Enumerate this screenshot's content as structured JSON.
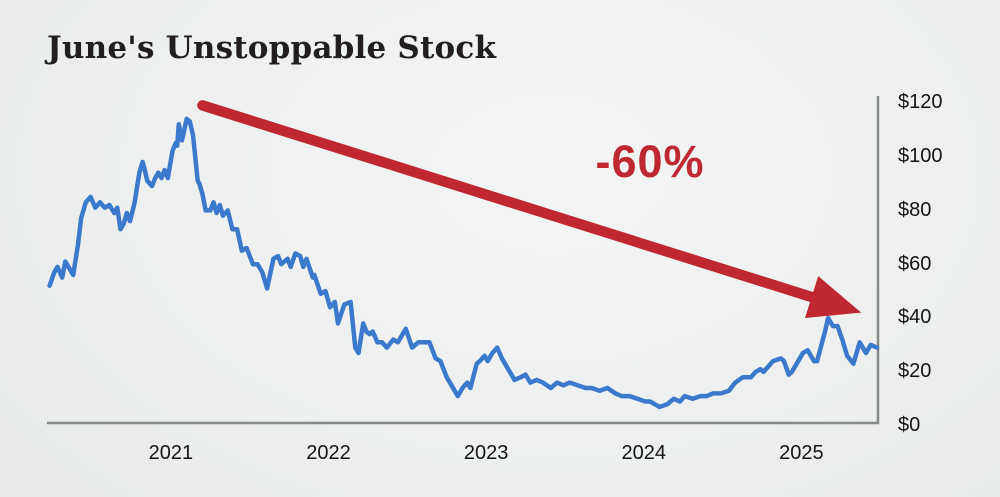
{
  "page": {
    "title": "June's Unstoppable Stock"
  },
  "colors": {
    "line_blue": "#3b79cd",
    "accent_red": "#bf2830",
    "axis_gray": "#858988",
    "tick_text": "#151515",
    "title_text": "#221e1f",
    "background": "#eceeed"
  },
  "chart_data": {
    "type": "line",
    "title": "June's Unstoppable Stock",
    "xlabel": "",
    "ylabel": "",
    "grid": false,
    "legend": false,
    "x_axis": {
      "range": [
        2020.22,
        2025.48
      ],
      "ticks": [
        2021,
        2022,
        2023,
        2024,
        2025
      ],
      "tick_labels": [
        "2021",
        "2022",
        "2023",
        "2024",
        "2025"
      ]
    },
    "y_axis": {
      "range": [
        0,
        120
      ],
      "ticks": [
        0,
        20,
        40,
        60,
        80,
        100,
        120
      ],
      "tick_labels": [
        "$0",
        "$20",
        "$40",
        "$60",
        "$80",
        "$100",
        "$120"
      ],
      "side": "right",
      "unit": "USD"
    },
    "series": [
      {
        "name": "stock-price",
        "color": "#3b79cd",
        "points": [
          [
            2020.23,
            51
          ],
          [
            2020.26,
            56
          ],
          [
            2020.28,
            58
          ],
          [
            2020.31,
            54
          ],
          [
            2020.33,
            60
          ],
          [
            2020.36,
            57
          ],
          [
            2020.38,
            55
          ],
          [
            2020.41,
            66
          ],
          [
            2020.43,
            76
          ],
          [
            2020.46,
            82
          ],
          [
            2020.49,
            84
          ],
          [
            2020.52,
            80
          ],
          [
            2020.55,
            82
          ],
          [
            2020.58,
            80
          ],
          [
            2020.61,
            81
          ],
          [
            2020.64,
            78
          ],
          [
            2020.66,
            80
          ],
          [
            2020.68,
            72
          ],
          [
            2020.7,
            74
          ],
          [
            2020.72,
            78
          ],
          [
            2020.74,
            75
          ],
          [
            2020.77,
            82
          ],
          [
            2020.78,
            86
          ],
          [
            2020.8,
            93
          ],
          [
            2020.82,
            97
          ],
          [
            2020.83,
            95
          ],
          [
            2020.85,
            90
          ],
          [
            2020.88,
            88
          ],
          [
            2020.9,
            91
          ],
          [
            2020.92,
            93
          ],
          [
            2020.94,
            91
          ],
          [
            2020.96,
            94
          ],
          [
            2020.98,
            91
          ],
          [
            2021.01,
            101
          ],
          [
            2021.03,
            104
          ],
          [
            2021.04,
            103
          ],
          [
            2021.05,
            111
          ],
          [
            2021.07,
            105
          ],
          [
            2021.1,
            113
          ],
          [
            2021.12,
            112
          ],
          [
            2021.14,
            107
          ],
          [
            2021.17,
            90
          ],
          [
            2021.18,
            89
          ],
          [
            2021.2,
            85
          ],
          [
            2021.22,
            79
          ],
          [
            2021.25,
            79
          ],
          [
            2021.27,
            82
          ],
          [
            2021.29,
            78
          ],
          [
            2021.31,
            81
          ],
          [
            2021.33,
            77
          ],
          [
            2021.36,
            79
          ],
          [
            2021.39,
            72
          ],
          [
            2021.42,
            72
          ],
          [
            2021.45,
            64
          ],
          [
            2021.48,
            65
          ],
          [
            2021.52,
            59
          ],
          [
            2021.55,
            59
          ],
          [
            2021.58,
            56
          ],
          [
            2021.61,
            50
          ],
          [
            2021.65,
            61
          ],
          [
            2021.68,
            62
          ],
          [
            2021.7,
            59
          ],
          [
            2021.74,
            61
          ],
          [
            2021.76,
            58
          ],
          [
            2021.79,
            63
          ],
          [
            2021.82,
            62
          ],
          [
            2021.84,
            58
          ],
          [
            2021.86,
            61
          ],
          [
            2021.9,
            54
          ],
          [
            2021.91,
            55
          ],
          [
            2021.95,
            48
          ],
          [
            2021.98,
            49
          ],
          [
            2022.01,
            43
          ],
          [
            2022.04,
            45
          ],
          [
            2022.06,
            37
          ],
          [
            2022.1,
            44
          ],
          [
            2022.14,
            45
          ],
          [
            2022.17,
            28
          ],
          [
            2022.19,
            26
          ],
          [
            2022.22,
            37
          ],
          [
            2022.24,
            34
          ],
          [
            2022.26,
            33
          ],
          [
            2022.28,
            34
          ],
          [
            2022.31,
            30
          ],
          [
            2022.34,
            30
          ],
          [
            2022.37,
            28
          ],
          [
            2022.41,
            31
          ],
          [
            2022.44,
            30
          ],
          [
            2022.47,
            33
          ],
          [
            2022.49,
            35
          ],
          [
            2022.53,
            28
          ],
          [
            2022.57,
            30
          ],
          [
            2022.61,
            30
          ],
          [
            2022.64,
            30
          ],
          [
            2022.68,
            24
          ],
          [
            2022.71,
            23
          ],
          [
            2022.75,
            17
          ],
          [
            2022.78,
            14
          ],
          [
            2022.82,
            10
          ],
          [
            2022.85,
            13
          ],
          [
            2022.88,
            15
          ],
          [
            2022.9,
            13
          ],
          [
            2022.94,
            22
          ],
          [
            2022.96,
            23
          ],
          [
            2022.99,
            25
          ],
          [
            2023.01,
            23
          ],
          [
            2023.04,
            26
          ],
          [
            2023.07,
            28
          ],
          [
            2023.1,
            24
          ],
          [
            2023.12,
            22
          ],
          [
            2023.15,
            19
          ],
          [
            2023.18,
            16
          ],
          [
            2023.22,
            17
          ],
          [
            2023.25,
            18
          ],
          [
            2023.28,
            15
          ],
          [
            2023.32,
            16
          ],
          [
            2023.36,
            15
          ],
          [
            2023.41,
            13
          ],
          [
            2023.45,
            15
          ],
          [
            2023.49,
            14
          ],
          [
            2023.53,
            15
          ],
          [
            2023.58,
            14
          ],
          [
            2023.63,
            13
          ],
          [
            2023.67,
            13
          ],
          [
            2023.72,
            12
          ],
          [
            2023.77,
            13
          ],
          [
            2023.82,
            11
          ],
          [
            2023.86,
            10
          ],
          [
            2023.91,
            10
          ],
          [
            2023.96,
            9
          ],
          [
            2024.01,
            8
          ],
          [
            2024.04,
            8
          ],
          [
            2024.07,
            7
          ],
          [
            2024.1,
            6
          ],
          [
            2024.15,
            7
          ],
          [
            2024.19,
            9
          ],
          [
            2024.23,
            8
          ],
          [
            2024.26,
            10
          ],
          [
            2024.31,
            9
          ],
          [
            2024.36,
            10
          ],
          [
            2024.4,
            10
          ],
          [
            2024.44,
            11
          ],
          [
            2024.49,
            11
          ],
          [
            2024.54,
            12
          ],
          [
            2024.58,
            15
          ],
          [
            2024.63,
            17
          ],
          [
            2024.68,
            17
          ],
          [
            2024.71,
            19
          ],
          [
            2024.74,
            20
          ],
          [
            2024.76,
            19
          ],
          [
            2024.79,
            21
          ],
          [
            2024.82,
            23
          ],
          [
            2024.87,
            24
          ],
          [
            2024.89,
            23
          ],
          [
            2024.92,
            18
          ],
          [
            2024.94,
            19
          ],
          [
            2024.98,
            23
          ],
          [
            2025.01,
            26
          ],
          [
            2025.04,
            27
          ],
          [
            2025.08,
            23
          ],
          [
            2025.1,
            23
          ],
          [
            2025.15,
            34
          ],
          [
            2025.17,
            39
          ],
          [
            2025.2,
            36
          ],
          [
            2025.23,
            36
          ],
          [
            2025.26,
            31
          ],
          [
            2025.29,
            25
          ],
          [
            2025.33,
            22
          ],
          [
            2025.37,
            30
          ],
          [
            2025.41,
            26
          ],
          [
            2025.44,
            29
          ],
          [
            2025.48,
            28
          ]
        ]
      }
    ],
    "annotation": {
      "label": "-60%",
      "color": "#bf2830",
      "arrow_from": [
        2021.2,
        118
      ],
      "arrow_to": [
        2025.38,
        41
      ],
      "label_pos": [
        2024.04,
        97
      ]
    }
  }
}
